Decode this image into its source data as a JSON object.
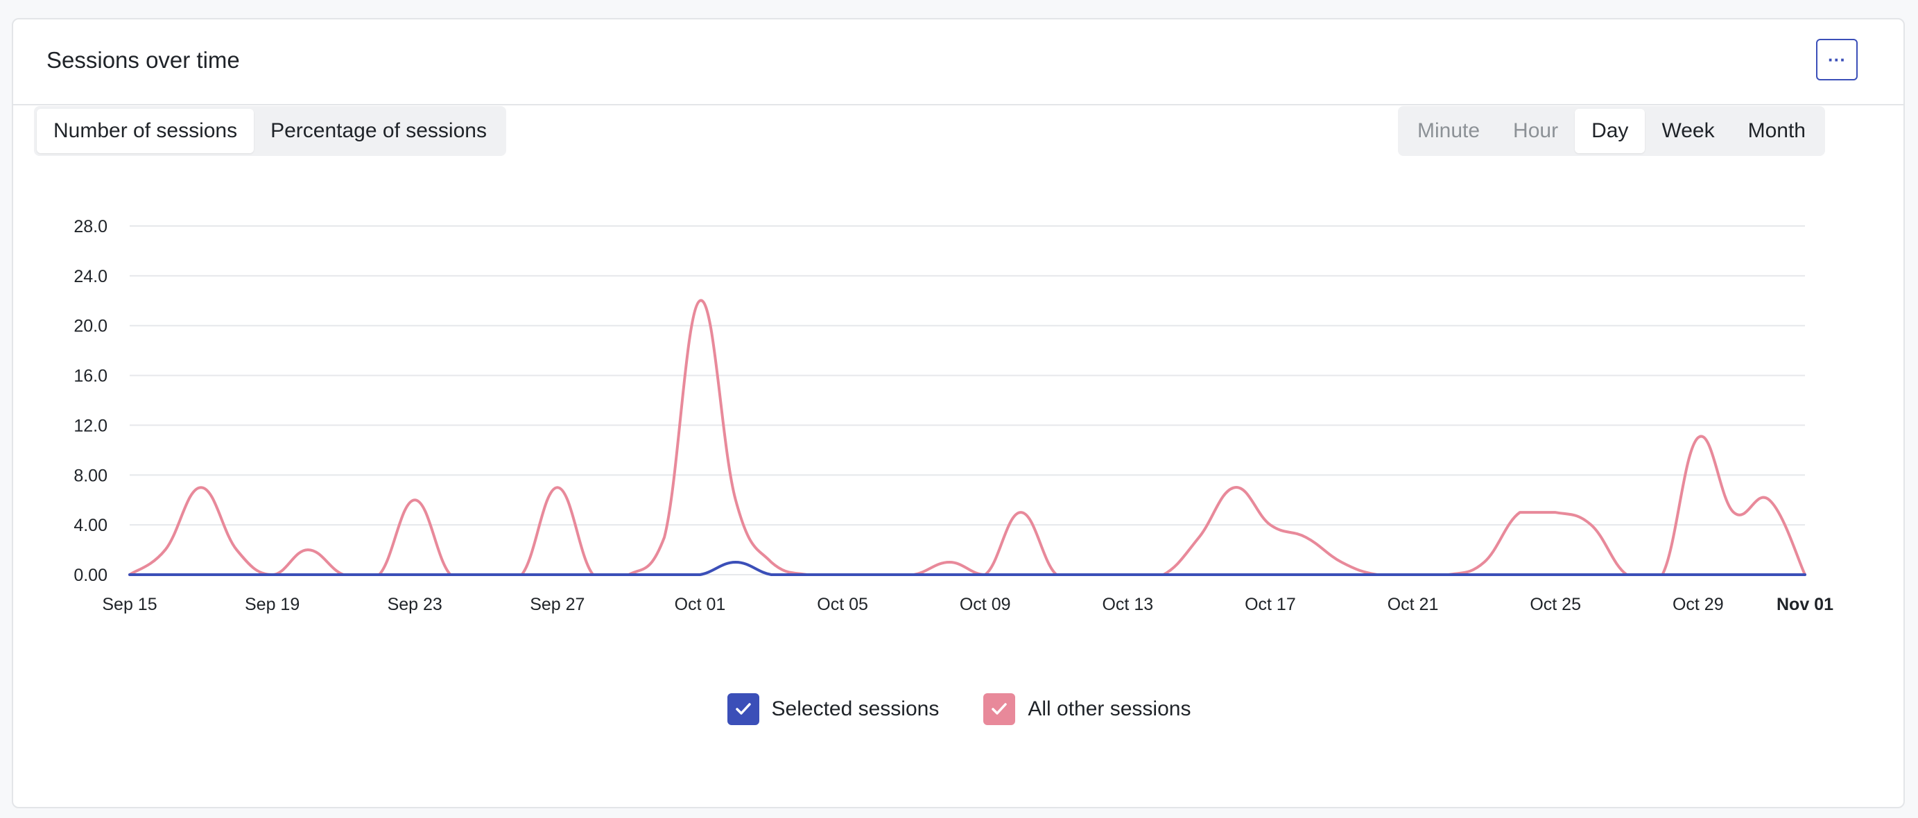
{
  "card": {
    "title": "Sessions over time",
    "more_label": "···"
  },
  "metric_toggle": {
    "options": [
      "Number of sessions",
      "Percentage of sessions"
    ],
    "selected": "Number of sessions"
  },
  "interval_toggle": {
    "options": [
      {
        "label": "Minute",
        "enabled": false
      },
      {
        "label": "Hour",
        "enabled": false
      },
      {
        "label": "Day",
        "enabled": true
      },
      {
        "label": "Week",
        "enabled": true
      },
      {
        "label": "Month",
        "enabled": true
      }
    ],
    "selected": "Day"
  },
  "legend": {
    "items": [
      {
        "label": "Selected sessions",
        "color": "#3b4fb8",
        "checked": true
      },
      {
        "label": "All other sessions",
        "color": "#e8899a",
        "checked": true
      }
    ]
  },
  "chart_data": {
    "type": "line",
    "title": "",
    "xlabel": "",
    "ylabel": "",
    "ylim": [
      0,
      28
    ],
    "y_ticks": [
      "0.00",
      "4.00",
      "8.00",
      "12.0",
      "16.0",
      "20.0",
      "24.0",
      "28.0"
    ],
    "x_tick_labels": [
      "Sep 15",
      "Sep 19",
      "Sep 23",
      "Sep 27",
      "Oct 01",
      "Oct 05",
      "Oct 09",
      "Oct 13",
      "Oct 17",
      "Oct 21",
      "Oct 25",
      "Oct 29",
      "Nov 01"
    ],
    "x_tick_index": [
      0,
      4,
      8,
      12,
      16,
      20,
      24,
      28,
      32,
      36,
      40,
      44,
      47
    ],
    "categories": [
      "Sep 15",
      "Sep 16",
      "Sep 17",
      "Sep 18",
      "Sep 19",
      "Sep 20",
      "Sep 21",
      "Sep 22",
      "Sep 23",
      "Sep 24",
      "Sep 25",
      "Sep 26",
      "Sep 27",
      "Sep 28",
      "Sep 29",
      "Sep 30",
      "Oct 01",
      "Oct 02",
      "Oct 03",
      "Oct 04",
      "Oct 05",
      "Oct 06",
      "Oct 07",
      "Oct 08",
      "Oct 09",
      "Oct 10",
      "Oct 11",
      "Oct 12",
      "Oct 13",
      "Oct 14",
      "Oct 15",
      "Oct 16",
      "Oct 17",
      "Oct 18",
      "Oct 19",
      "Oct 20",
      "Oct 21",
      "Oct 22",
      "Oct 23",
      "Oct 24",
      "Oct 25",
      "Oct 26",
      "Oct 27",
      "Oct 28",
      "Oct 29",
      "Oct 30",
      "Oct 31",
      "Nov 01"
    ],
    "series": [
      {
        "name": "All other sessions",
        "color": "#e8899a",
        "values": [
          0,
          2,
          7,
          2,
          0,
          2,
          0,
          0,
          6,
          0,
          0,
          0,
          7,
          0,
          0,
          3,
          22,
          6,
          1,
          0,
          0,
          0,
          0,
          1,
          0,
          5,
          0,
          0,
          0,
          0,
          3,
          7,
          4,
          3,
          1,
          0,
          0,
          0,
          1,
          5,
          5,
          4,
          0,
          0,
          11,
          5,
          6,
          0
        ]
      },
      {
        "name": "Selected sessions",
        "color": "#3b4fb8",
        "values": [
          0,
          0,
          0,
          0,
          0,
          0,
          0,
          0,
          0,
          0,
          0,
          0,
          0,
          0,
          0,
          0,
          0,
          1,
          0,
          0,
          0,
          0,
          0,
          0,
          0,
          0,
          0,
          0,
          0,
          0,
          0,
          0,
          0,
          0,
          0,
          0,
          0,
          0,
          0,
          0,
          0,
          0,
          0,
          0,
          0,
          0,
          0,
          0
        ]
      }
    ]
  }
}
